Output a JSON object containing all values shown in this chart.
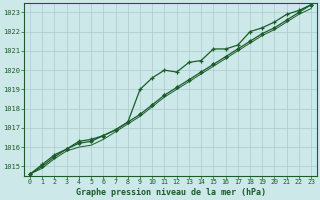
{
  "x": [
    0,
    1,
    2,
    3,
    4,
    5,
    6,
    7,
    8,
    9,
    10,
    11,
    12,
    13,
    14,
    15,
    16,
    17,
    18,
    19,
    20,
    21,
    22,
    23
  ],
  "line_main": [
    1014.6,
    1015.0,
    1015.5,
    1015.9,
    1016.2,
    1016.3,
    1016.6,
    1016.9,
    1017.3,
    1017.7,
    1018.2,
    1018.7,
    1019.1,
    1019.5,
    1019.9,
    1020.3,
    1020.7,
    1021.1,
    1021.5,
    1021.9,
    1022.2,
    1022.6,
    1023.0,
    1023.4
  ],
  "line_upper": [
    1014.6,
    1015.1,
    1015.6,
    1015.9,
    1016.3,
    1016.4,
    1016.6,
    1016.9,
    1017.3,
    1019.0,
    1019.6,
    1020.0,
    1019.9,
    1020.4,
    1020.5,
    1021.1,
    1021.1,
    1021.3,
    1022.0,
    1022.2,
    1022.5,
    1022.9,
    1023.1,
    1023.4
  ],
  "line_lower": [
    1014.6,
    1014.9,
    1015.4,
    1015.8,
    1016.0,
    1016.1,
    1016.4,
    1016.8,
    1017.2,
    1017.6,
    1018.1,
    1018.6,
    1019.0,
    1019.4,
    1019.8,
    1020.2,
    1020.6,
    1021.0,
    1021.4,
    1021.8,
    1022.1,
    1022.5,
    1022.9,
    1023.2
  ],
  "bg_color": "#cce8e8",
  "grid_color": "#aacccc",
  "line_color": "#1a5c2a",
  "xlabel": "Graphe pression niveau de la mer (hPa)",
  "ylim": [
    1014.5,
    1023.5
  ],
  "xlim": [
    -0.5,
    23.5
  ],
  "yticks": [
    1015,
    1016,
    1017,
    1018,
    1019,
    1020,
    1021,
    1022,
    1023
  ],
  "xticks": [
    0,
    1,
    2,
    3,
    4,
    5,
    6,
    7,
    8,
    9,
    10,
    11,
    12,
    13,
    14,
    15,
    16,
    17,
    18,
    19,
    20,
    21,
    22,
    23
  ]
}
